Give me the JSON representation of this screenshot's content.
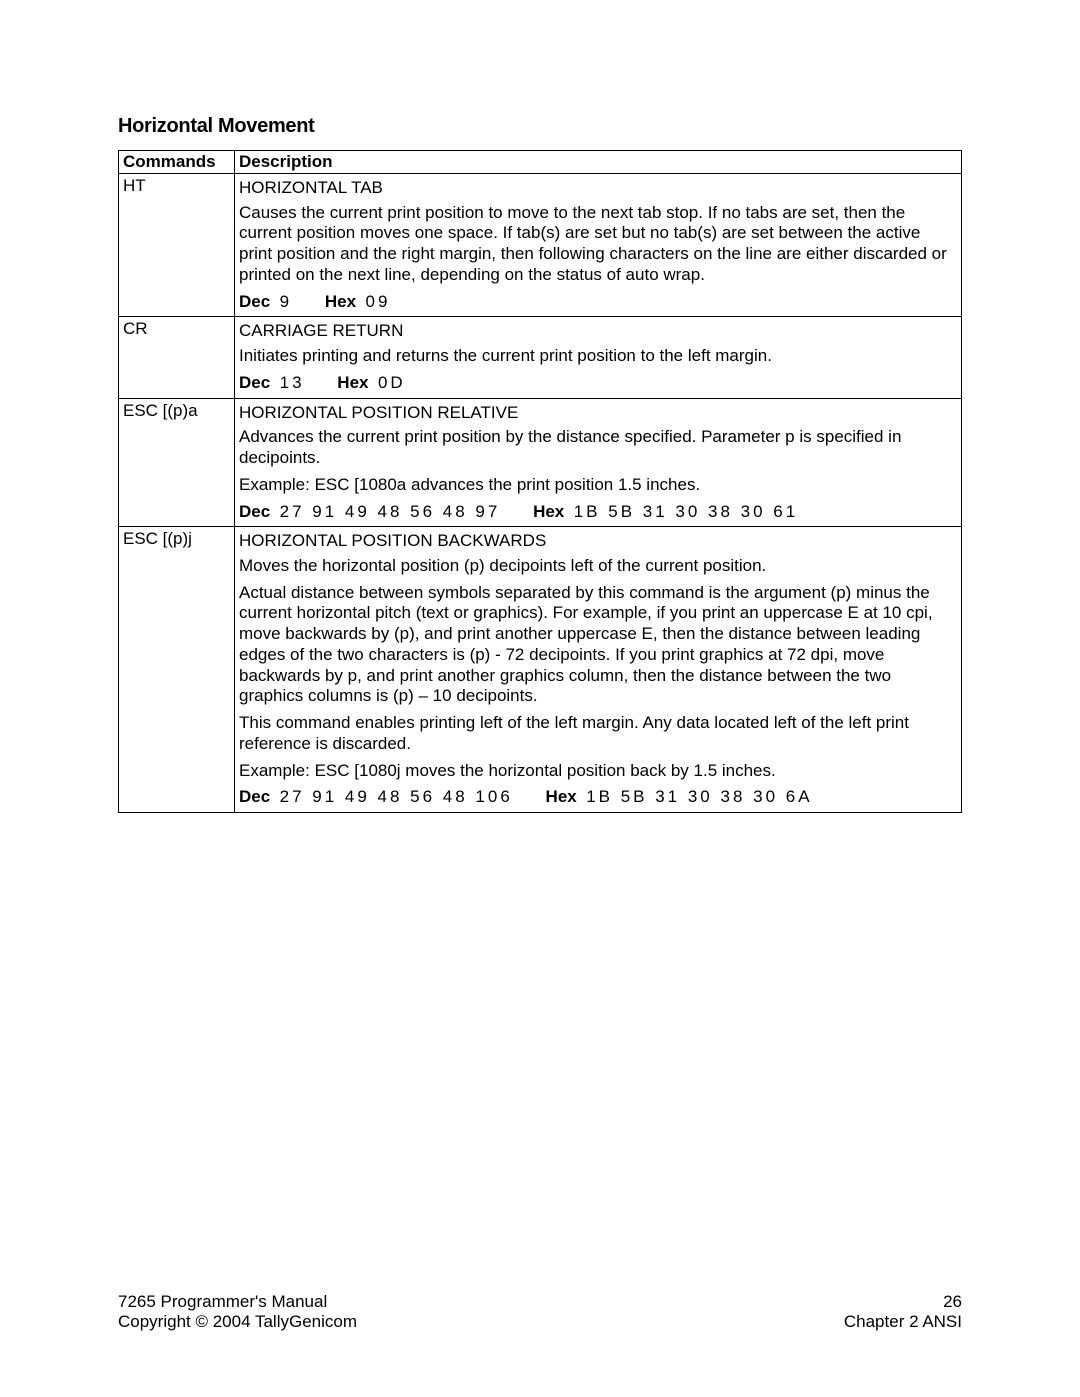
{
  "heading": "Horizontal Movement",
  "table": {
    "header": {
      "col1": "Commands",
      "col2": "Description"
    },
    "rows": [
      {
        "cmd": "HT",
        "title": "HORIZONTAL TAB",
        "paras": [
          "Causes the current print position to move to the next tab stop. If no tabs are set, then the current position moves one space. If tab(s) are set but no tab(s) are set between the active print position and the right margin, then following characters on the line are either discarded or printed on the next line, depending on the status of auto wrap."
        ],
        "decLabel": "Dec",
        "decVal": "9",
        "hexLabel": "Hex",
        "hexVal": "09"
      },
      {
        "cmd": "CR",
        "title": "CARRIAGE RETURN",
        "paras": [
          "Initiates printing and returns the current print position to the left margin."
        ],
        "decLabel": "Dec",
        "decVal": "13",
        "hexLabel": "Hex",
        "hexVal": "0D"
      },
      {
        "cmd": "ESC [(p)a",
        "title": "HORIZONTAL POSITION RELATIVE",
        "paras": [
          "Advances the current print position by the distance specified.  Parameter p is specified in decipoints.",
          "Example: ESC [1080a advances the print position 1.5 inches."
        ],
        "decLabel": "Dec",
        "decVal": "27 91 49 48 56 48 97",
        "hexLabel": "Hex",
        "hexVal": "1B 5B 31 30 38 30 61"
      },
      {
        "cmd": "ESC [(p)j",
        "title": "HORIZONTAL POSITION BACKWARDS",
        "paras": [
          "Moves the horizontal position (p) decipoints left of the current position.",
          "Actual distance between symbols separated by this command is the argument (p) minus the current horizontal pitch (text or graphics).  For example, if you print an uppercase E at 10 cpi, move backwards by (p), and print another uppercase E, then the distance between leading edges of the two characters is (p) - 72 decipoints. If you print graphics at 72 dpi, move backwards by p, and print another graphics column, then the distance between the two graphics columns is (p) – 10 decipoints.",
          "This command enables printing left of the left margin. Any data located left of the left print reference is discarded.",
          "Example: ESC [1080j moves the horizontal position back by 1.5 inches."
        ],
        "decLabel": "Dec",
        "decVal": "27 91 49 48 56 48 106",
        "hexLabel": "Hex",
        "hexVal": "1B 5B 31 30 38 30 6A"
      }
    ]
  },
  "footer": {
    "left1": "7265 Programmer's Manual",
    "left2": "Copyright © 2004 TallyGenicom",
    "right1": "26",
    "right2": "Chapter 2 ANSI"
  }
}
